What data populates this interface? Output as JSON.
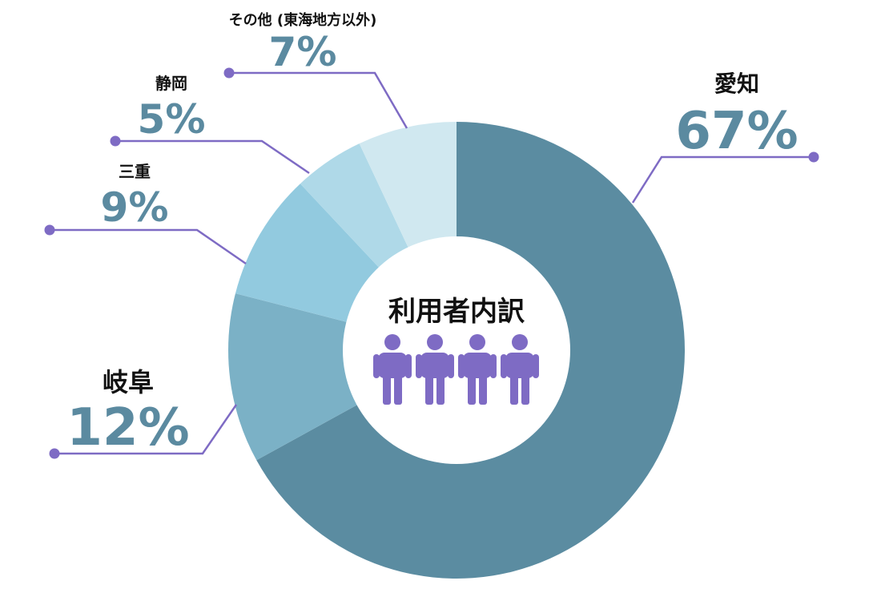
{
  "chart_data": {
    "type": "donut",
    "title": "利用者内訳",
    "slices": [
      {
        "label": "愛知",
        "value": 67,
        "value_label": "67%",
        "color": "#5b8ca1"
      },
      {
        "label": "岐阜",
        "value": 12,
        "value_label": "12%",
        "color": "#7bb1c6"
      },
      {
        "label": "三重",
        "value": 9,
        "value_label": "9%",
        "color": "#92cadf"
      },
      {
        "label": "静岡",
        "value": 5,
        "value_label": "5%",
        "color": "#afd9e8"
      },
      {
        "label": "その他 (東海地方以外)",
        "value": 7,
        "value_label": "7%",
        "color": "#d0e8f0"
      }
    ],
    "start": "12 o'clock",
    "direction": "clockwise",
    "center_icon": "people-group-icon",
    "leader_color": "#7e6bc4",
    "icon_color": "#7e6bc4",
    "percent_color": "#5b8aa0"
  }
}
